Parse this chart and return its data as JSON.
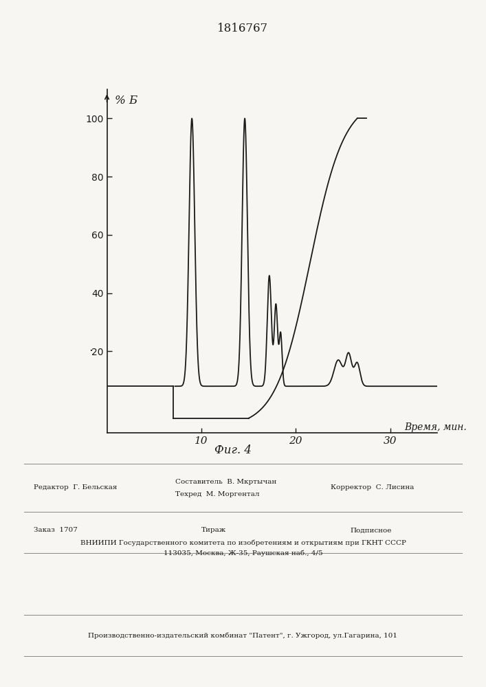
{
  "title": "1816767",
  "ylabel": "% Б",
  "xlabel": "Время, мин.",
  "fig_caption": "Фиг. 4",
  "xlim": [
    0,
    35
  ],
  "ylim": [
    -8,
    110
  ],
  "yticks": [
    20,
    40,
    60,
    80,
    100
  ],
  "xticks": [
    10,
    20,
    30
  ],
  "background_color": "#f8f6f3",
  "line_color": "#1a1a1a"
}
